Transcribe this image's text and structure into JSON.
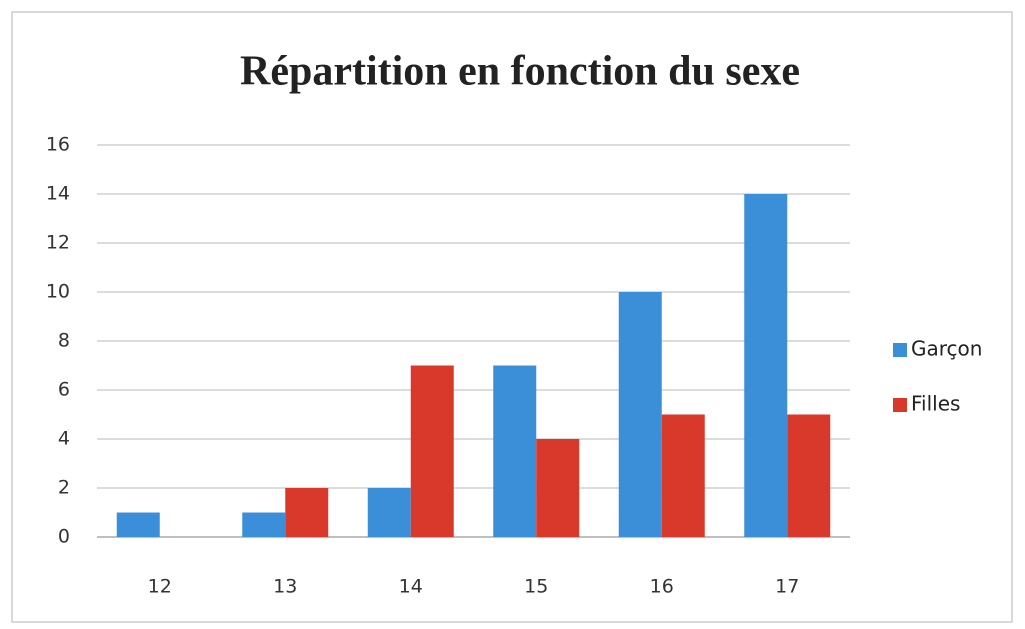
{
  "chart_data": {
    "type": "bar",
    "title": "Répartition en fonction du sexe",
    "categories": [
      "12",
      "13",
      "14",
      "15",
      "16",
      "17"
    ],
    "series": [
      {
        "name": "Garçon",
        "color": "#3b8fd8",
        "values": [
          1,
          1,
          2,
          7,
          10,
          14
        ]
      },
      {
        "name": "Filles",
        "color": "#d8392a",
        "values": [
          0,
          2,
          7,
          4,
          5,
          5
        ]
      }
    ],
    "ylim": [
      0,
      16
    ],
    "yticks": [
      0,
      2,
      4,
      6,
      8,
      10,
      12,
      14,
      16
    ],
    "grid": true,
    "legend": "right"
  }
}
